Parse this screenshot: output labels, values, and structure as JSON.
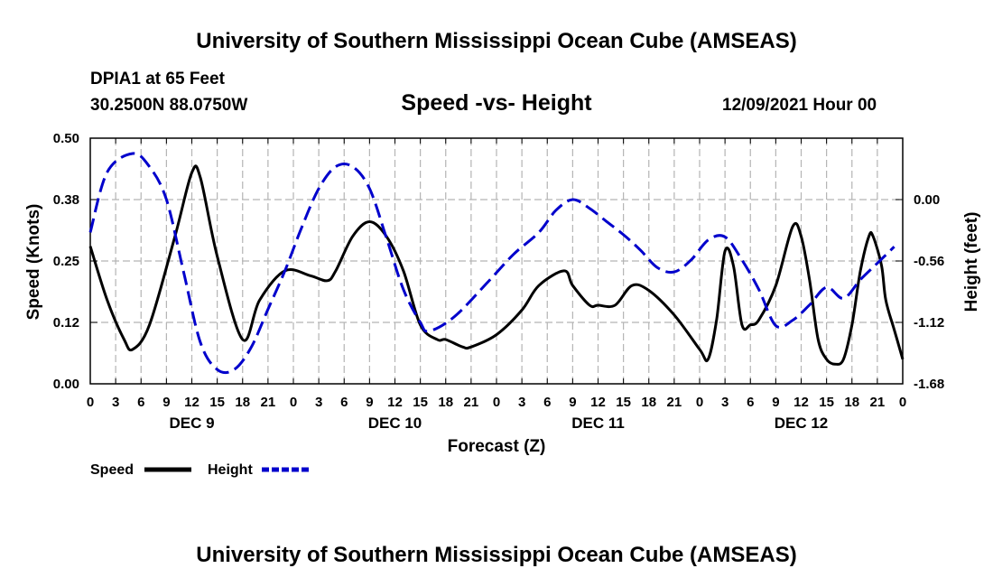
{
  "page": {
    "title_top": "University of Southern Mississippi Ocean Cube (AMSEAS)",
    "title_bottom": "University of Southern Mississippi Ocean Cube (AMSEAS)",
    "station": "DPIA1 at 65 Feet",
    "coords": "30.2500N  88.0750W",
    "subtitle": "Speed -vs- Height",
    "datetime": "12/09/2021 Hour 00"
  },
  "chart_data": {
    "type": "line",
    "title": "Speed -vs- Height",
    "xlabel": "Forecast (Z)",
    "ylabel_left": "Speed (Knots)",
    "ylabel_right": "Height (feet)",
    "x_ticks": [
      "0",
      "3",
      "6",
      "9",
      "12",
      "15",
      "18",
      "21",
      "0",
      "3",
      "6",
      "9",
      "12",
      "15",
      "18",
      "21",
      "0",
      "3",
      "6",
      "9",
      "12",
      "15",
      "18",
      "21",
      "0",
      "3",
      "6",
      "9",
      "12",
      "15",
      "18",
      "21",
      "0"
    ],
    "day_labels": [
      {
        "label": "DEC 9",
        "hour": 12
      },
      {
        "label": "DEC 10",
        "hour": 36
      },
      {
        "label": "DEC 11",
        "hour": 60
      },
      {
        "label": "DEC 12",
        "hour": 84
      }
    ],
    "xlim": [
      0,
      96
    ],
    "ylim_left": [
      0,
      0.5
    ],
    "ylim_right": [
      -1.68,
      0.56
    ],
    "left_ticks": [
      "0.00",
      "0.12",
      "0.25",
      "0.38",
      "0.50"
    ],
    "right_ticks": [
      "-1.68",
      "-1.12",
      "-0.56",
      "0.00"
    ],
    "grid": true,
    "legend": [
      {
        "name": "Speed",
        "color": "#000000",
        "style": "solid"
      },
      {
        "name": "Height",
        "color": "#0000cc",
        "style": "dashed"
      }
    ],
    "series": [
      {
        "name": "Speed",
        "axis": "left",
        "color": "#000000",
        "style": "solid",
        "x": [
          0,
          2,
          4,
          5,
          7,
          10,
          12,
          13,
          15,
          18,
          20,
          23,
          26,
          28,
          29,
          31,
          33,
          35,
          37,
          39,
          41,
          42,
          44,
          45,
          48,
          51,
          53,
          56,
          57,
          59,
          60,
          62,
          64,
          66,
          69,
          72,
          73,
          74,
          75,
          76,
          77,
          78,
          79,
          81,
          83,
          84,
          85,
          86,
          87,
          88,
          89,
          90,
          91,
          92,
          92.5,
          93.5,
          94,
          95,
          96
        ],
        "y": [
          0.28,
          0.17,
          0.09,
          0.07,
          0.12,
          0.3,
          0.43,
          0.42,
          0.26,
          0.09,
          0.17,
          0.23,
          0.22,
          0.21,
          0.23,
          0.3,
          0.33,
          0.3,
          0.23,
          0.12,
          0.09,
          0.09,
          0.075,
          0.075,
          0.1,
          0.15,
          0.2,
          0.23,
          0.2,
          0.16,
          0.16,
          0.16,
          0.2,
          0.19,
          0.14,
          0.07,
          0.05,
          0.13,
          0.27,
          0.24,
          0.12,
          0.12,
          0.13,
          0.2,
          0.32,
          0.3,
          0.21,
          0.09,
          0.05,
          0.04,
          0.05,
          0.12,
          0.23,
          0.3,
          0.3,
          0.24,
          0.17,
          0.11,
          0.05
        ]
      },
      {
        "name": "Height",
        "axis": "right",
        "color": "#0000cc",
        "style": "dashed",
        "x": [
          0,
          2,
          5,
          7,
          9,
          11,
          13,
          15,
          17,
          19,
          21,
          23,
          25,
          27,
          29,
          31,
          33,
          35,
          37,
          39,
          40,
          43,
          47,
          50,
          53,
          55,
          57,
          59,
          61,
          63,
          65,
          67,
          69,
          71,
          73,
          75,
          77,
          79,
          81,
          83,
          85,
          87,
          89,
          91,
          93,
          95
        ],
        "y": [
          -0.3,
          0.25,
          0.42,
          0.3,
          0.0,
          -0.65,
          -1.3,
          -1.55,
          -1.55,
          -1.35,
          -1.0,
          -0.65,
          -0.25,
          0.1,
          0.3,
          0.3,
          0.1,
          -0.35,
          -0.82,
          -1.12,
          -1.2,
          -1.07,
          -0.75,
          -0.5,
          -0.3,
          -0.1,
          0.0,
          -0.08,
          -0.2,
          -0.32,
          -0.46,
          -0.62,
          -0.66,
          -0.55,
          -0.37,
          -0.34,
          -0.55,
          -0.82,
          -1.15,
          -1.1,
          -0.96,
          -0.8,
          -0.9,
          -0.73,
          -0.58,
          -0.43
        ]
      }
    ]
  }
}
